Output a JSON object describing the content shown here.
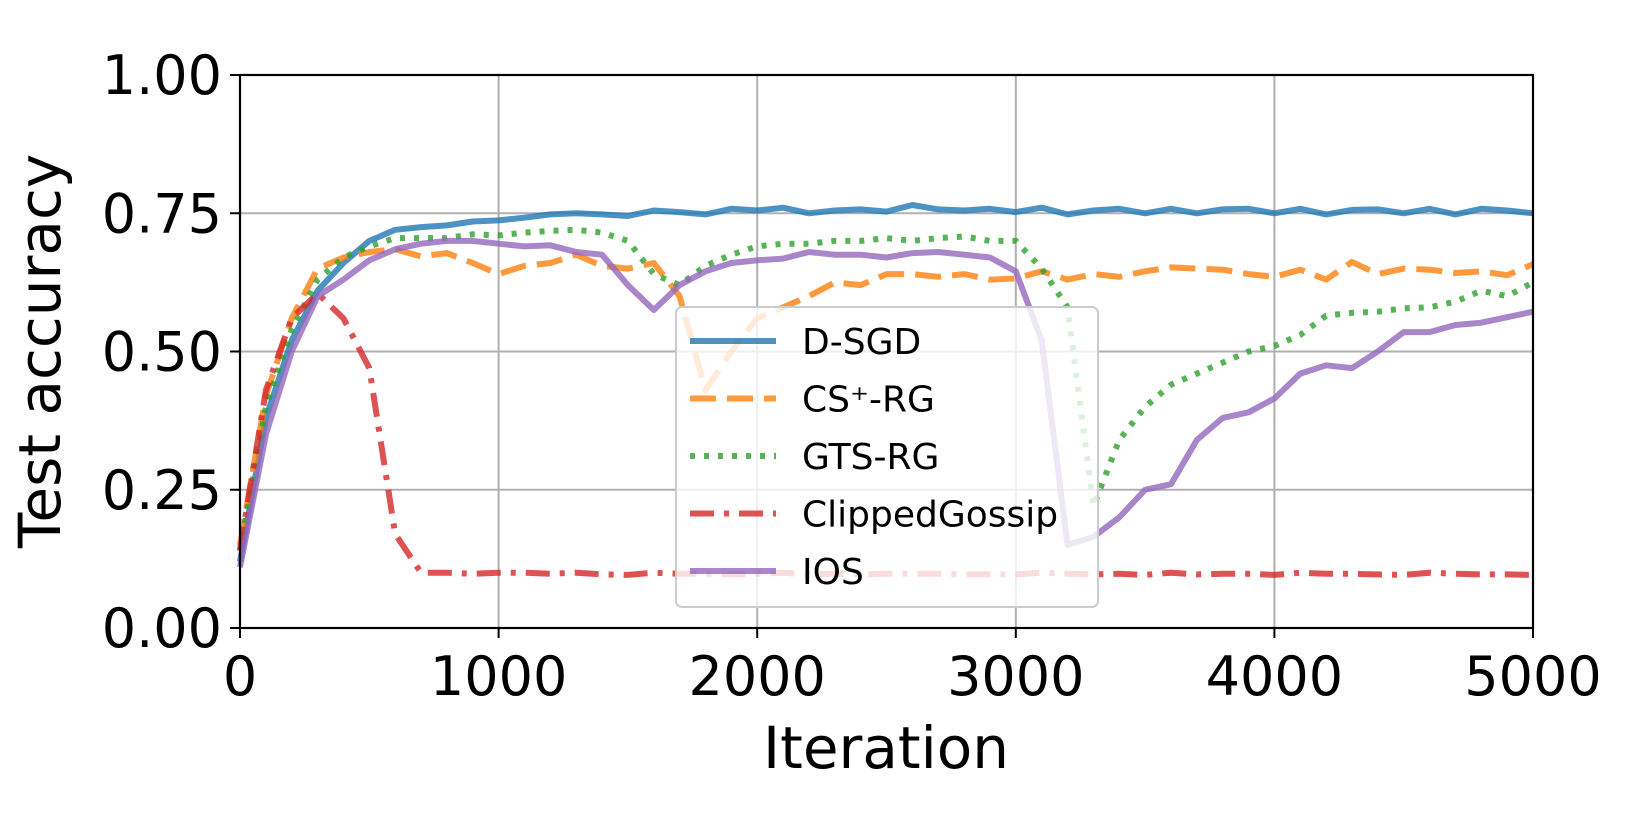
{
  "chart_data": {
    "type": "line",
    "title": "",
    "xlabel": "Iteration",
    "ylabel": "Test accuracy",
    "xlim": [
      0,
      5000
    ],
    "ylim": [
      0,
      1
    ],
    "grid": true,
    "legend_position": "center",
    "x_ticks": [
      "0",
      "1000",
      "2000",
      "3000",
      "4000",
      "5000"
    ],
    "y_ticks": [
      "0.00",
      "0.25",
      "0.50",
      "0.75",
      "1.00"
    ],
    "x_tick_values": [
      0,
      1000,
      2000,
      3000,
      4000,
      5000
    ],
    "y_tick_values": [
      0,
      0.25,
      0.5,
      0.75,
      1.0
    ],
    "x": [
      0,
      100,
      200,
      300,
      400,
      500,
      600,
      700,
      800,
      900,
      1000,
      1100,
      1200,
      1300,
      1400,
      1500,
      1600,
      1700,
      1800,
      1900,
      2000,
      2100,
      2200,
      2300,
      2400,
      2500,
      2600,
      2700,
      2800,
      2900,
      3000,
      3100,
      3200,
      3300,
      3400,
      3500,
      3600,
      3700,
      3800,
      3900,
      4000,
      4100,
      4200,
      4300,
      4400,
      4500,
      4600,
      4700,
      4800,
      4900,
      5000
    ],
    "series": [
      {
        "name": "D-SGD",
        "color": "#1f77b4",
        "style": "solid",
        "values": [
          0.12,
          0.38,
          0.52,
          0.61,
          0.66,
          0.7,
          0.72,
          0.725,
          0.728,
          0.735,
          0.737,
          0.742,
          0.748,
          0.75,
          0.748,
          0.745,
          0.755,
          0.752,
          0.748,
          0.758,
          0.755,
          0.76,
          0.75,
          0.755,
          0.757,
          0.753,
          0.765,
          0.757,
          0.755,
          0.758,
          0.752,
          0.76,
          0.748,
          0.755,
          0.758,
          0.75,
          0.758,
          0.75,
          0.757,
          0.758,
          0.75,
          0.758,
          0.748,
          0.756,
          0.757,
          0.75,
          0.758,
          0.748,
          0.758,
          0.755,
          0.75
        ]
      },
      {
        "name": "CS⁺-RG",
        "color": "#ff7f0e",
        "style": "dashed",
        "values": [
          0.15,
          0.42,
          0.56,
          0.65,
          0.67,
          0.68,
          0.685,
          0.672,
          0.678,
          0.66,
          0.64,
          0.655,
          0.66,
          0.675,
          0.655,
          0.65,
          0.66,
          0.6,
          0.43,
          0.5,
          0.56,
          0.58,
          0.6,
          0.625,
          0.62,
          0.64,
          0.64,
          0.635,
          0.64,
          0.63,
          0.632,
          0.645,
          0.63,
          0.64,
          0.635,
          0.645,
          0.652,
          0.65,
          0.648,
          0.64,
          0.635,
          0.648,
          0.63,
          0.662,
          0.64,
          0.65,
          0.648,
          0.642,
          0.645,
          0.638,
          0.658
        ]
      },
      {
        "name": "GTS-RG",
        "color": "#2ca02c",
        "style": "dotted",
        "values": [
          0.14,
          0.4,
          0.54,
          0.63,
          0.67,
          0.69,
          0.705,
          0.705,
          0.705,
          0.712,
          0.71,
          0.715,
          0.718,
          0.72,
          0.715,
          0.7,
          0.64,
          0.62,
          0.655,
          0.675,
          0.69,
          0.695,
          0.695,
          0.7,
          0.7,
          0.705,
          0.7,
          0.705,
          0.708,
          0.7,
          0.7,
          0.65,
          0.58,
          0.22,
          0.34,
          0.4,
          0.44,
          0.46,
          0.48,
          0.5,
          0.51,
          0.53,
          0.565,
          0.57,
          0.572,
          0.578,
          0.58,
          0.59,
          0.61,
          0.6,
          0.625
        ]
      },
      {
        "name": "ClippedGossip",
        "color": "#d62728",
        "style": "dashdot",
        "values": [
          0.14,
          0.43,
          0.56,
          0.605,
          0.56,
          0.47,
          0.17,
          0.1,
          0.1,
          0.098,
          0.1,
          0.1,
          0.098,
          0.1,
          0.097,
          0.096,
          0.1,
          0.098,
          0.098,
          0.097,
          0.098,
          0.1,
          0.097,
          0.098,
          0.097,
          0.098,
          0.098,
          0.098,
          0.097,
          0.097,
          0.097,
          0.1,
          0.098,
          0.097,
          0.098,
          0.096,
          0.1,
          0.097,
          0.098,
          0.098,
          0.096,
          0.1,
          0.098,
          0.098,
          0.097,
          0.096,
          0.1,
          0.098,
          0.097,
          0.097,
          0.096
        ]
      },
      {
        "name": "IOS",
        "color": "#9467bd",
        "style": "solid",
        "values": [
          0.11,
          0.35,
          0.5,
          0.6,
          0.63,
          0.665,
          0.685,
          0.695,
          0.7,
          0.7,
          0.695,
          0.69,
          0.692,
          0.68,
          0.675,
          0.62,
          0.575,
          0.62,
          0.645,
          0.66,
          0.665,
          0.668,
          0.68,
          0.675,
          0.675,
          0.67,
          0.678,
          0.68,
          0.675,
          0.67,
          0.645,
          0.52,
          0.15,
          0.165,
          0.2,
          0.25,
          0.26,
          0.34,
          0.38,
          0.39,
          0.415,
          0.46,
          0.475,
          0.47,
          0.5,
          0.535,
          0.535,
          0.548,
          0.552,
          0.562,
          0.572
        ]
      }
    ]
  }
}
